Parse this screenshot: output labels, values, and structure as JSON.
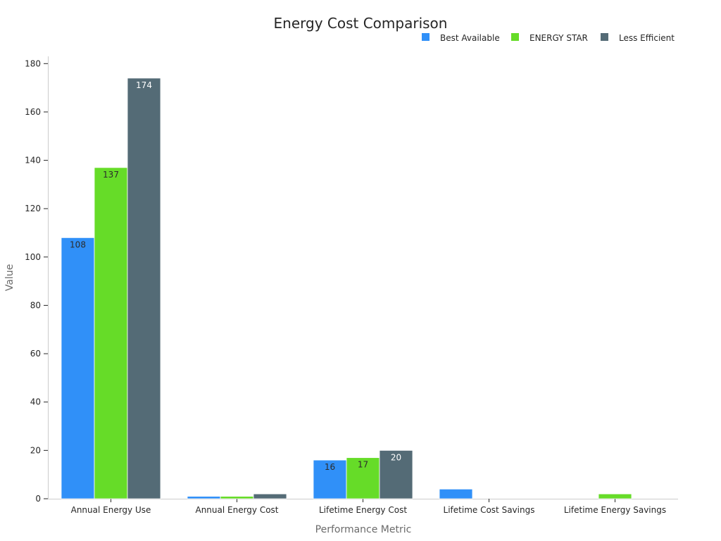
{
  "chart_data": {
    "type": "bar",
    "title": "Energy Cost Comparison",
    "xlabel": "Performance Metric",
    "ylabel": "Value",
    "ylim": [
      0,
      183
    ],
    "yticks": [
      0,
      20,
      40,
      60,
      80,
      100,
      120,
      140,
      160,
      180
    ],
    "grid": false,
    "legend_position": "top-right",
    "categories": [
      "Annual Energy Use",
      "Annual Energy Cost",
      "Lifetime Energy Cost",
      "Lifetime Cost Savings",
      "Lifetime Energy Savings"
    ],
    "series": [
      {
        "name": "Best Available",
        "color": "#3090f8",
        "label_color": "#2b2b2b",
        "values": [
          108,
          1,
          16,
          4,
          null
        ]
      },
      {
        "name": "ENERGY STAR",
        "color": "#66dc28",
        "label_color": "#2b2b2b",
        "values": [
          137,
          1,
          17,
          null,
          2
        ]
      },
      {
        "name": "Less Efficient",
        "color": "#546b76",
        "label_color": "#ffffff",
        "values": [
          174,
          2,
          20,
          null,
          null
        ]
      }
    ],
    "data_labels": [
      [
        "108",
        "1",
        "16",
        "4",
        ""
      ],
      [
        "137",
        "1",
        "17",
        "",
        "2"
      ],
      [
        "174",
        "2",
        "20",
        "",
        ""
      ]
    ]
  }
}
